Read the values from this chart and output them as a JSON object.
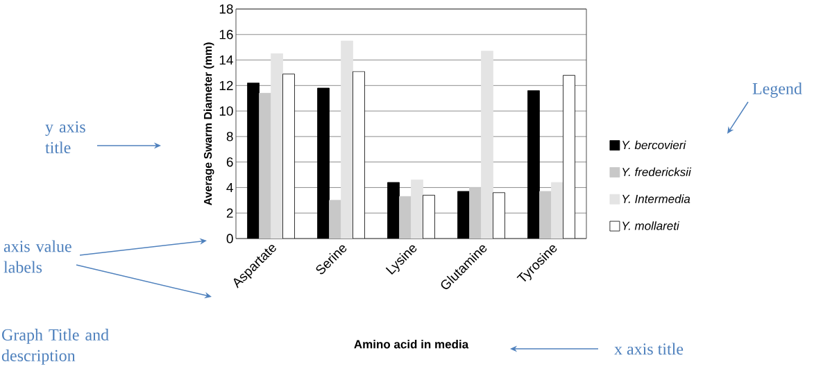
{
  "chart_data": {
    "type": "bar",
    "xlabel": "Amino acid in media",
    "ylabel": "Average Swarm Diameter (mm)",
    "categories": [
      "Aspartate",
      "Serine",
      "Lysine",
      "Glutamine",
      "Tyrosine"
    ],
    "series": [
      {
        "name": "Y. bercovieri",
        "color": "#000000",
        "values": [
          12.2,
          11.8,
          4.4,
          3.7,
          11.6
        ]
      },
      {
        "name": "Y. fredericksii",
        "color": "#c8c8c8",
        "values": [
          11.4,
          3.0,
          3.3,
          4.0,
          3.7
        ]
      },
      {
        "name": "Y. Intermedia",
        "color": "#e4e4e4",
        "values": [
          14.5,
          15.5,
          4.6,
          14.7,
          4.4
        ]
      },
      {
        "name": "Y. mollareti",
        "color": "#ffffff",
        "values": [
          12.9,
          13.1,
          3.4,
          3.6,
          12.8
        ]
      }
    ],
    "ylim": [
      0,
      18
    ],
    "yticks": [
      0,
      2,
      4,
      6,
      8,
      10,
      12,
      14,
      16,
      18
    ],
    "grid": "y",
    "legend": "right",
    "annotations": [
      "Legend",
      "y axis title",
      "axis value labels",
      "Graph Title and description",
      "x axis title"
    ]
  }
}
